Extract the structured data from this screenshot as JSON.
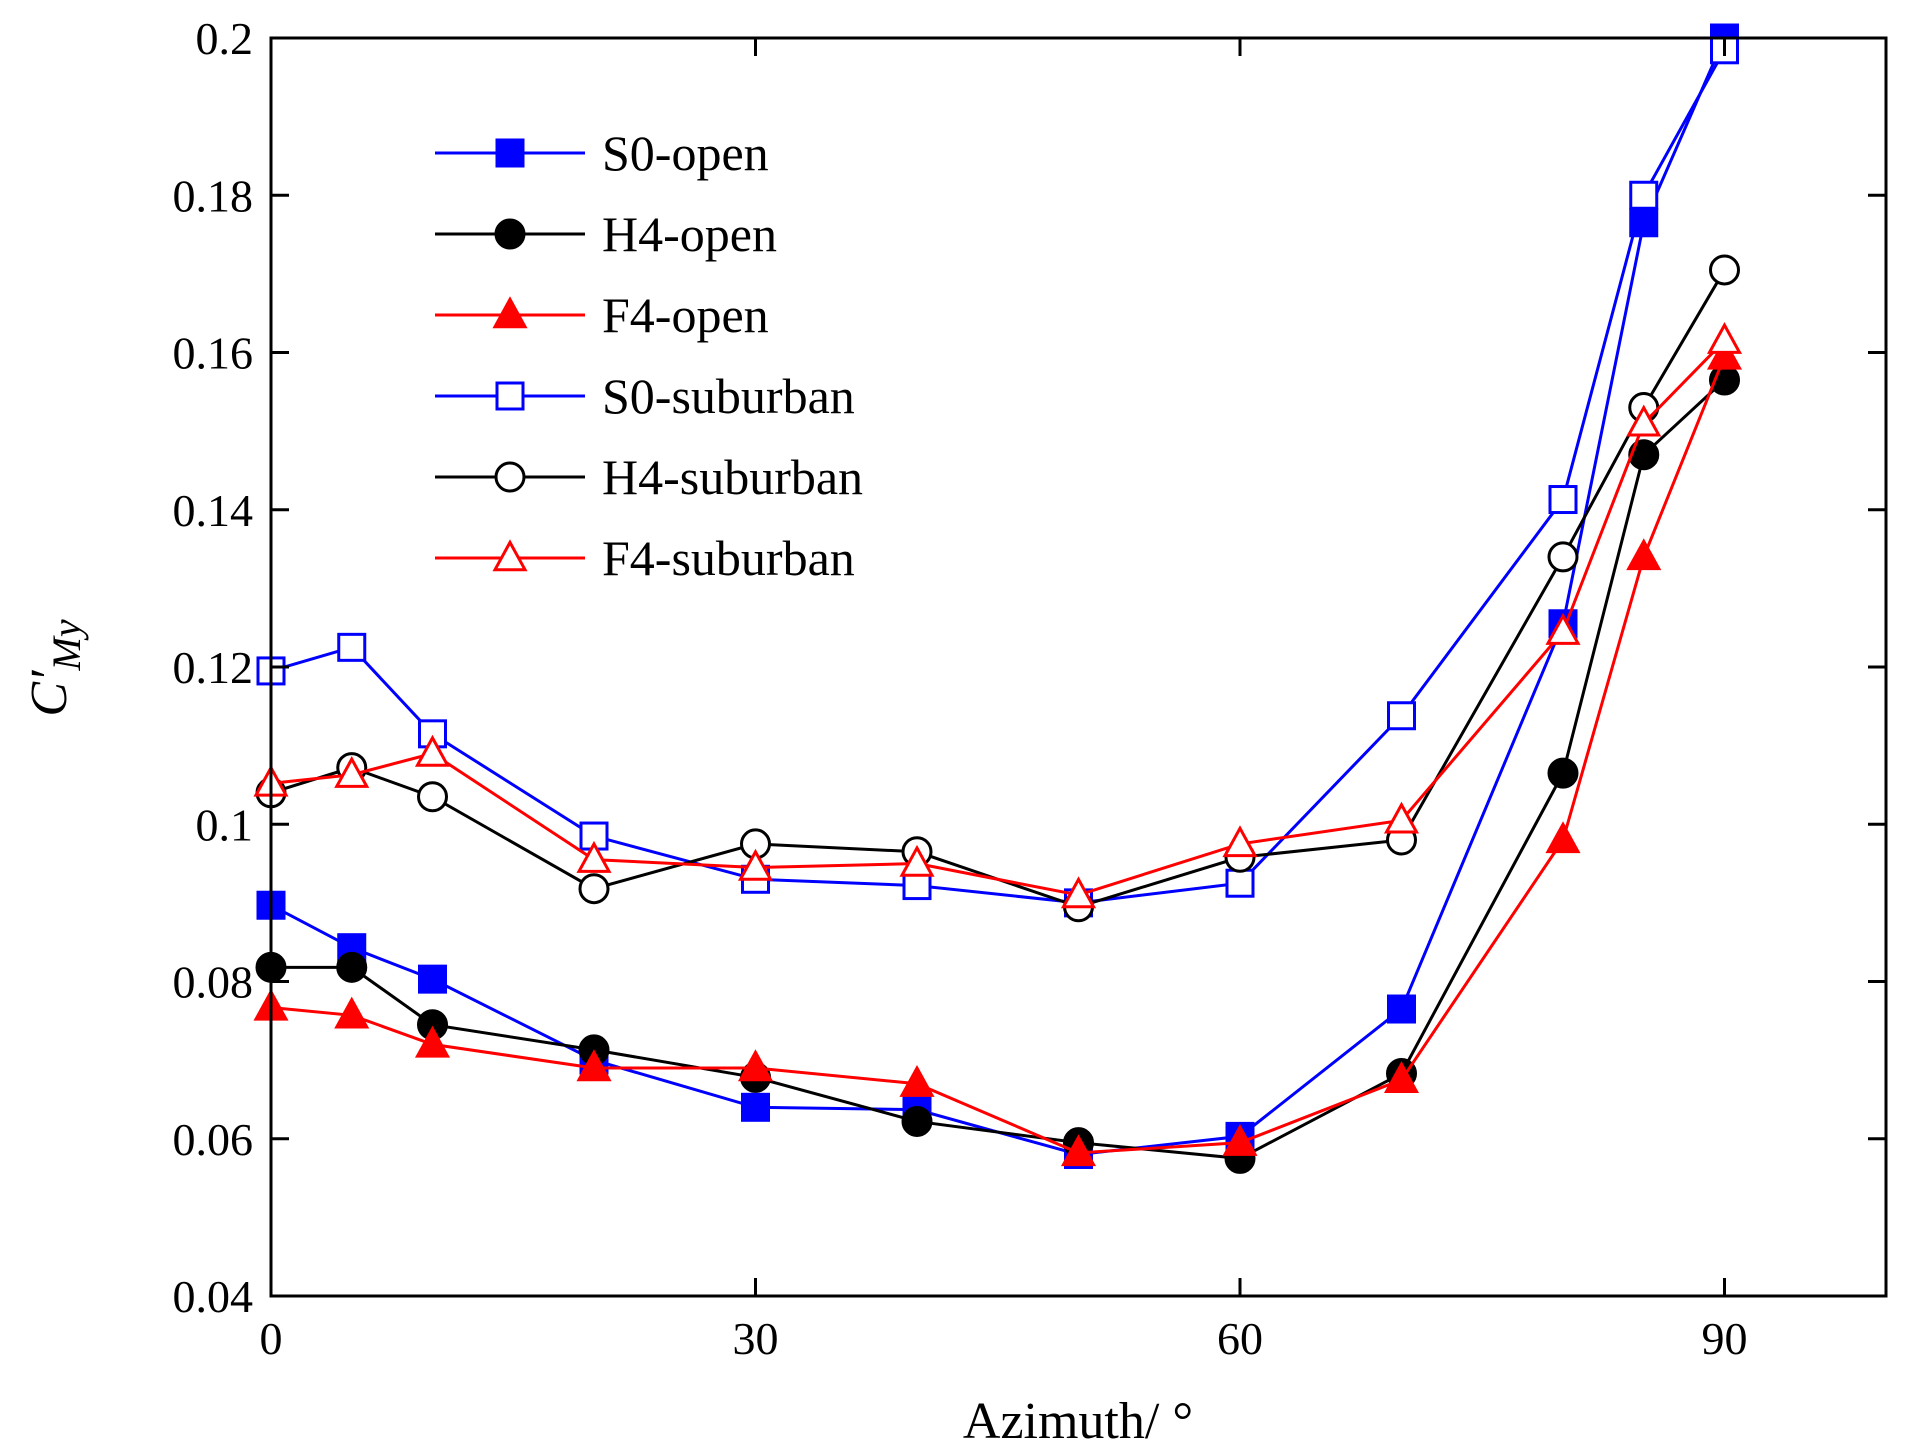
{
  "chart_data": {
    "type": "line",
    "title": "",
    "xlabel": "Azimuth/ °",
    "ylabel": {
      "base": "C′",
      "sub": "My"
    },
    "xlim": [
      0,
      100
    ],
    "ylim": [
      0.04,
      0.2
    ],
    "xticks": [
      0,
      30,
      60,
      90
    ],
    "xtick_labels": [
      "0",
      "30",
      "60",
      "90"
    ],
    "yticks": [
      0.04,
      0.06,
      0.08,
      0.1,
      0.12,
      0.14,
      0.16,
      0.18,
      0.2
    ],
    "ytick_labels": [
      "0.04",
      "0.06",
      "0.08",
      "0.1",
      "0.12",
      "0.14",
      "0.16",
      "0.18",
      "0.2"
    ],
    "grid": false,
    "legend_position": "top-left",
    "x": [
      0,
      5,
      10,
      20,
      30,
      40,
      50,
      60,
      70,
      80,
      85,
      90
    ],
    "series": [
      {
        "name": "S0-open",
        "color": "#0000ff",
        "marker": "square",
        "filled": true,
        "values": [
          0.0897,
          0.0843,
          0.0803,
          0.07,
          0.064,
          0.0637,
          0.058,
          0.0603,
          0.0765,
          0.1255,
          0.1765,
          0.2
        ]
      },
      {
        "name": "H4-open",
        "color": "#000000",
        "marker": "circle",
        "filled": true,
        "values": [
          0.0818,
          0.0818,
          0.0745,
          0.0713,
          0.0678,
          0.0622,
          0.0595,
          0.0575,
          0.0683,
          0.1065,
          0.147,
          0.1565
        ]
      },
      {
        "name": "F4-open",
        "color": "#ff0000",
        "marker": "triangle",
        "filled": true,
        "values": [
          0.0767,
          0.0757,
          0.072,
          0.069,
          0.069,
          0.067,
          0.0582,
          0.0595,
          0.0675,
          0.098,
          0.134,
          0.1595
        ]
      },
      {
        "name": "S0-suburban",
        "color": "#0000ff",
        "marker": "square",
        "filled": false,
        "values": [
          0.1195,
          0.1225,
          0.1115,
          0.0985,
          0.093,
          0.0922,
          0.09,
          0.0925,
          0.1138,
          0.1413,
          0.18,
          0.1985
        ]
      },
      {
        "name": "H4-suburban",
        "color": "#000000",
        "marker": "circle",
        "filled": false,
        "values": [
          0.104,
          0.1072,
          0.1035,
          0.0918,
          0.0975,
          0.0965,
          0.0895,
          0.0958,
          0.098,
          0.134,
          0.153,
          0.1705
        ]
      },
      {
        "name": "F4-suburban",
        "color": "#ff0000",
        "marker": "triangle",
        "filled": false,
        "values": [
          0.1052,
          0.1063,
          0.109,
          0.0955,
          0.0945,
          0.095,
          0.091,
          0.0975,
          0.1005,
          0.1245,
          0.151,
          0.1615
        ]
      }
    ]
  }
}
